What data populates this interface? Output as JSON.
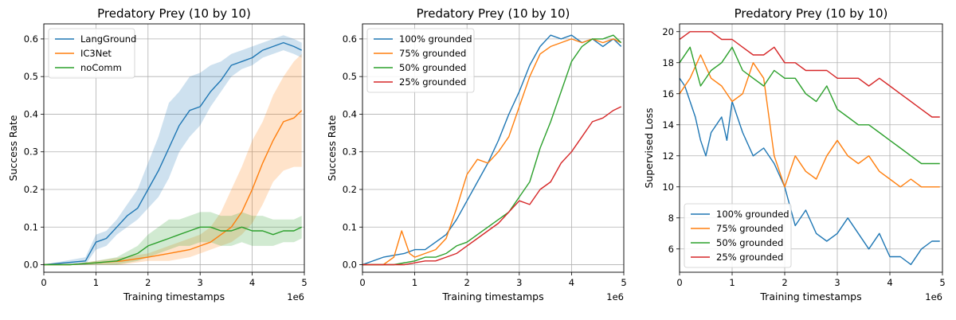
{
  "chart_data": [
    {
      "type": "line",
      "title": "Predatory Prey (10 by 10)",
      "xlabel": "Training timestamps",
      "ylabel": "Success Rate",
      "x_multiplier": "1e6",
      "xlim": [
        0,
        5
      ],
      "ylim": [
        -0.02,
        0.64
      ],
      "xticks": [
        "0",
        "1",
        "2",
        "3",
        "4",
        "5"
      ],
      "yticks": [
        "0.0",
        "0.1",
        "0.2",
        "0.3",
        "0.4",
        "0.5",
        "0.6"
      ],
      "grid": true,
      "legend_position": "top-left",
      "series": [
        {
          "name": "LangGround",
          "color": "#1f77b4",
          "band": true,
          "x": [
            0,
            0.4,
            0.8,
            1.0,
            1.2,
            1.4,
            1.6,
            1.8,
            2.0,
            2.2,
            2.4,
            2.6,
            2.8,
            3.0,
            3.2,
            3.4,
            3.6,
            3.8,
            4.0,
            4.2,
            4.4,
            4.6,
            4.8,
            4.95
          ],
          "values": [
            0.0,
            0.005,
            0.01,
            0.06,
            0.07,
            0.1,
            0.13,
            0.15,
            0.2,
            0.25,
            0.31,
            0.37,
            0.41,
            0.42,
            0.46,
            0.49,
            0.53,
            0.54,
            0.55,
            0.57,
            0.58,
            0.59,
            0.58,
            0.57
          ],
          "lower": [
            0.0,
            0.0,
            0.0,
            0.04,
            0.05,
            0.08,
            0.1,
            0.12,
            0.15,
            0.18,
            0.23,
            0.3,
            0.34,
            0.37,
            0.42,
            0.46,
            0.5,
            0.52,
            0.53,
            0.55,
            0.56,
            0.57,
            0.56,
            0.55
          ],
          "upper": [
            0.0,
            0.01,
            0.02,
            0.08,
            0.09,
            0.12,
            0.16,
            0.2,
            0.27,
            0.34,
            0.43,
            0.46,
            0.5,
            0.51,
            0.53,
            0.54,
            0.56,
            0.57,
            0.58,
            0.59,
            0.6,
            0.61,
            0.6,
            0.59
          ]
        },
        {
          "name": "IC3Net",
          "color": "#ff7f0e",
          "band": true,
          "x": [
            0,
            0.5,
            1.0,
            1.5,
            2.0,
            2.4,
            2.8,
            3.0,
            3.2,
            3.4,
            3.6,
            3.8,
            4.0,
            4.2,
            4.4,
            4.6,
            4.8,
            4.95
          ],
          "values": [
            0.0,
            0.0,
            0.005,
            0.01,
            0.02,
            0.03,
            0.04,
            0.05,
            0.06,
            0.08,
            0.1,
            0.14,
            0.2,
            0.27,
            0.33,
            0.38,
            0.39,
            0.41
          ],
          "lower": [
            0.0,
            0.0,
            0.0,
            0.0,
            0.01,
            0.01,
            0.02,
            0.03,
            0.04,
            0.05,
            0.06,
            0.08,
            0.11,
            0.16,
            0.22,
            0.25,
            0.26,
            0.26
          ],
          "upper": [
            0.0,
            0.0,
            0.01,
            0.02,
            0.03,
            0.05,
            0.07,
            0.08,
            0.1,
            0.14,
            0.2,
            0.26,
            0.33,
            0.38,
            0.45,
            0.5,
            0.54,
            0.56
          ]
        },
        {
          "name": "noComm",
          "color": "#2ca02c",
          "band": true,
          "x": [
            0,
            0.5,
            1.0,
            1.4,
            1.8,
            2.0,
            2.2,
            2.4,
            2.6,
            2.8,
            3.0,
            3.2,
            3.4,
            3.6,
            3.8,
            4.0,
            4.2,
            4.4,
            4.6,
            4.8,
            4.95
          ],
          "values": [
            0.0,
            0.0,
            0.005,
            0.01,
            0.03,
            0.05,
            0.06,
            0.07,
            0.08,
            0.09,
            0.1,
            0.1,
            0.09,
            0.09,
            0.1,
            0.09,
            0.09,
            0.08,
            0.09,
            0.09,
            0.1
          ],
          "lower": [
            0.0,
            0.0,
            0.0,
            0.0,
            0.01,
            0.02,
            0.03,
            0.04,
            0.05,
            0.05,
            0.06,
            0.06,
            0.05,
            0.05,
            0.06,
            0.05,
            0.05,
            0.05,
            0.06,
            0.06,
            0.07
          ],
          "upper": [
            0.0,
            0.0,
            0.01,
            0.02,
            0.05,
            0.08,
            0.1,
            0.12,
            0.12,
            0.13,
            0.14,
            0.14,
            0.13,
            0.13,
            0.14,
            0.13,
            0.13,
            0.12,
            0.12,
            0.12,
            0.13
          ]
        }
      ]
    },
    {
      "type": "line",
      "title": "Predatory Prey (10 by 10)",
      "xlabel": "Training timestamps",
      "ylabel": "Success Rate",
      "x_multiplier": "1e6",
      "xlim": [
        0,
        5
      ],
      "ylim": [
        -0.02,
        0.64
      ],
      "xticks": [
        "0",
        "1",
        "2",
        "3",
        "4",
        "5"
      ],
      "yticks": [
        "0.0",
        "0.1",
        "0.2",
        "0.3",
        "0.4",
        "0.5",
        "0.6"
      ],
      "grid": true,
      "legend_position": "top-left",
      "series": [
        {
          "name": "100% grounded",
          "color": "#1f77b4",
          "x": [
            0,
            0.4,
            0.8,
            1.0,
            1.2,
            1.4,
            1.6,
            1.8,
            2.0,
            2.2,
            2.4,
            2.6,
            2.8,
            3.0,
            3.2,
            3.4,
            3.6,
            3.8,
            4.0,
            4.2,
            4.4,
            4.6,
            4.8,
            4.95
          ],
          "values": [
            0.0,
            0.02,
            0.03,
            0.04,
            0.04,
            0.06,
            0.08,
            0.12,
            0.17,
            0.22,
            0.27,
            0.33,
            0.4,
            0.46,
            0.53,
            0.58,
            0.61,
            0.6,
            0.61,
            0.59,
            0.6,
            0.58,
            0.6,
            0.58
          ]
        },
        {
          "name": "75% grounded",
          "color": "#ff7f0e",
          "x": [
            0,
            0.4,
            0.6,
            0.75,
            0.9,
            1.0,
            1.2,
            1.4,
            1.6,
            1.8,
            2.0,
            2.2,
            2.4,
            2.6,
            2.8,
            3.0,
            3.2,
            3.4,
            3.6,
            3.8,
            4.0,
            4.2,
            4.4,
            4.6,
            4.8,
            4.95
          ],
          "values": [
            0.0,
            0.0,
            0.02,
            0.09,
            0.03,
            0.02,
            0.03,
            0.04,
            0.07,
            0.15,
            0.24,
            0.28,
            0.27,
            0.3,
            0.34,
            0.42,
            0.5,
            0.56,
            0.58,
            0.59,
            0.6,
            0.59,
            0.6,
            0.59,
            0.6,
            0.59
          ]
        },
        {
          "name": "50% grounded",
          "color": "#2ca02c",
          "x": [
            0,
            0.6,
            1.0,
            1.2,
            1.4,
            1.6,
            1.8,
            2.0,
            2.2,
            2.4,
            2.6,
            2.8,
            3.0,
            3.2,
            3.4,
            3.6,
            3.8,
            4.0,
            4.2,
            4.4,
            4.6,
            4.8,
            4.95
          ],
          "values": [
            0.0,
            0.0,
            0.01,
            0.02,
            0.02,
            0.03,
            0.05,
            0.06,
            0.08,
            0.1,
            0.12,
            0.14,
            0.18,
            0.22,
            0.31,
            0.38,
            0.46,
            0.54,
            0.58,
            0.6,
            0.6,
            0.61,
            0.59
          ]
        },
        {
          "name": "25% grounded",
          "color": "#d62728",
          "x": [
            0,
            0.8,
            1.2,
            1.4,
            1.6,
            1.8,
            2.0,
            2.2,
            2.4,
            2.6,
            2.8,
            3.0,
            3.2,
            3.4,
            3.6,
            3.8,
            4.0,
            4.2,
            4.4,
            4.6,
            4.8,
            4.95
          ],
          "values": [
            0.0,
            0.0,
            0.01,
            0.01,
            0.02,
            0.03,
            0.05,
            0.07,
            0.09,
            0.11,
            0.14,
            0.17,
            0.16,
            0.2,
            0.22,
            0.27,
            0.3,
            0.34,
            0.38,
            0.39,
            0.41,
            0.42
          ]
        }
      ]
    },
    {
      "type": "line",
      "title": "Predatory Prey (10 by 10)",
      "xlabel": "Training timestamps",
      "ylabel": "Supervised Loss",
      "x_multiplier": "1e6",
      "xlim": [
        0,
        5
      ],
      "ylim": [
        4.5,
        20.5
      ],
      "xticks": [
        "0",
        "1",
        "2",
        "3",
        "4",
        "5"
      ],
      "yticks": [
        "6",
        "8",
        "10",
        "12",
        "14",
        "16",
        "18",
        "20"
      ],
      "grid": true,
      "legend_position": "bottom-left",
      "series": [
        {
          "name": "100% grounded",
          "color": "#1f77b4",
          "x": [
            0,
            0.1,
            0.2,
            0.3,
            0.4,
            0.5,
            0.6,
            0.7,
            0.8,
            0.9,
            1.0,
            1.2,
            1.4,
            1.6,
            1.8,
            2.0,
            2.2,
            2.4,
            2.6,
            2.8,
            3.0,
            3.2,
            3.4,
            3.6,
            3.8,
            4.0,
            4.2,
            4.4,
            4.6,
            4.8,
            4.95
          ],
          "values": [
            17.0,
            16.5,
            15.5,
            14.5,
            13.0,
            12.0,
            13.5,
            14.0,
            14.5,
            13.0,
            15.5,
            13.5,
            12.0,
            12.5,
            11.5,
            10.0,
            7.5,
            8.5,
            7.0,
            6.5,
            7.0,
            8.0,
            7.0,
            6.0,
            7.0,
            5.5,
            5.5,
            5.0,
            6.0,
            6.5,
            6.5
          ]
        },
        {
          "name": "75% grounded",
          "color": "#ff7f0e",
          "x": [
            0,
            0.2,
            0.4,
            0.6,
            0.8,
            1.0,
            1.2,
            1.4,
            1.6,
            1.8,
            2.0,
            2.2,
            2.4,
            2.6,
            2.8,
            3.0,
            3.2,
            3.4,
            3.6,
            3.8,
            4.0,
            4.2,
            4.4,
            4.6,
            4.8,
            4.95
          ],
          "values": [
            16.0,
            17.0,
            18.5,
            17.0,
            16.5,
            15.5,
            16.0,
            18.0,
            17.0,
            12.0,
            10.0,
            12.0,
            11.0,
            10.5,
            12.0,
            13.0,
            12.0,
            11.5,
            12.0,
            11.0,
            10.5,
            10.0,
            10.5,
            10.0,
            10.0,
            10.0
          ]
        },
        {
          "name": "50% grounded",
          "color": "#2ca02c",
          "x": [
            0,
            0.2,
            0.4,
            0.6,
            0.8,
            1.0,
            1.2,
            1.4,
            1.6,
            1.8,
            2.0,
            2.2,
            2.4,
            2.6,
            2.8,
            3.0,
            3.2,
            3.4,
            3.6,
            3.8,
            4.0,
            4.2,
            4.4,
            4.6,
            4.8,
            4.95
          ],
          "values": [
            18.0,
            19.0,
            16.5,
            17.5,
            18.0,
            19.0,
            17.5,
            17.0,
            16.5,
            17.5,
            17.0,
            17.0,
            16.0,
            15.5,
            16.5,
            15.0,
            14.5,
            14.0,
            14.0,
            13.5,
            13.0,
            12.5,
            12.0,
            11.5,
            11.5,
            11.5
          ]
        },
        {
          "name": "25% grounded",
          "color": "#d62728",
          "x": [
            0,
            0.2,
            0.4,
            0.6,
            0.8,
            1.0,
            1.2,
            1.4,
            1.6,
            1.8,
            2.0,
            2.2,
            2.4,
            2.6,
            2.8,
            3.0,
            3.2,
            3.4,
            3.6,
            3.8,
            4.0,
            4.2,
            4.4,
            4.6,
            4.8,
            4.95
          ],
          "values": [
            19.5,
            20.0,
            20.0,
            20.0,
            19.5,
            19.5,
            19.0,
            18.5,
            18.5,
            19.0,
            18.0,
            18.0,
            17.5,
            17.5,
            17.5,
            17.0,
            17.0,
            17.0,
            16.5,
            17.0,
            16.5,
            16.0,
            15.5,
            15.0,
            14.5,
            14.5
          ]
        }
      ]
    }
  ]
}
